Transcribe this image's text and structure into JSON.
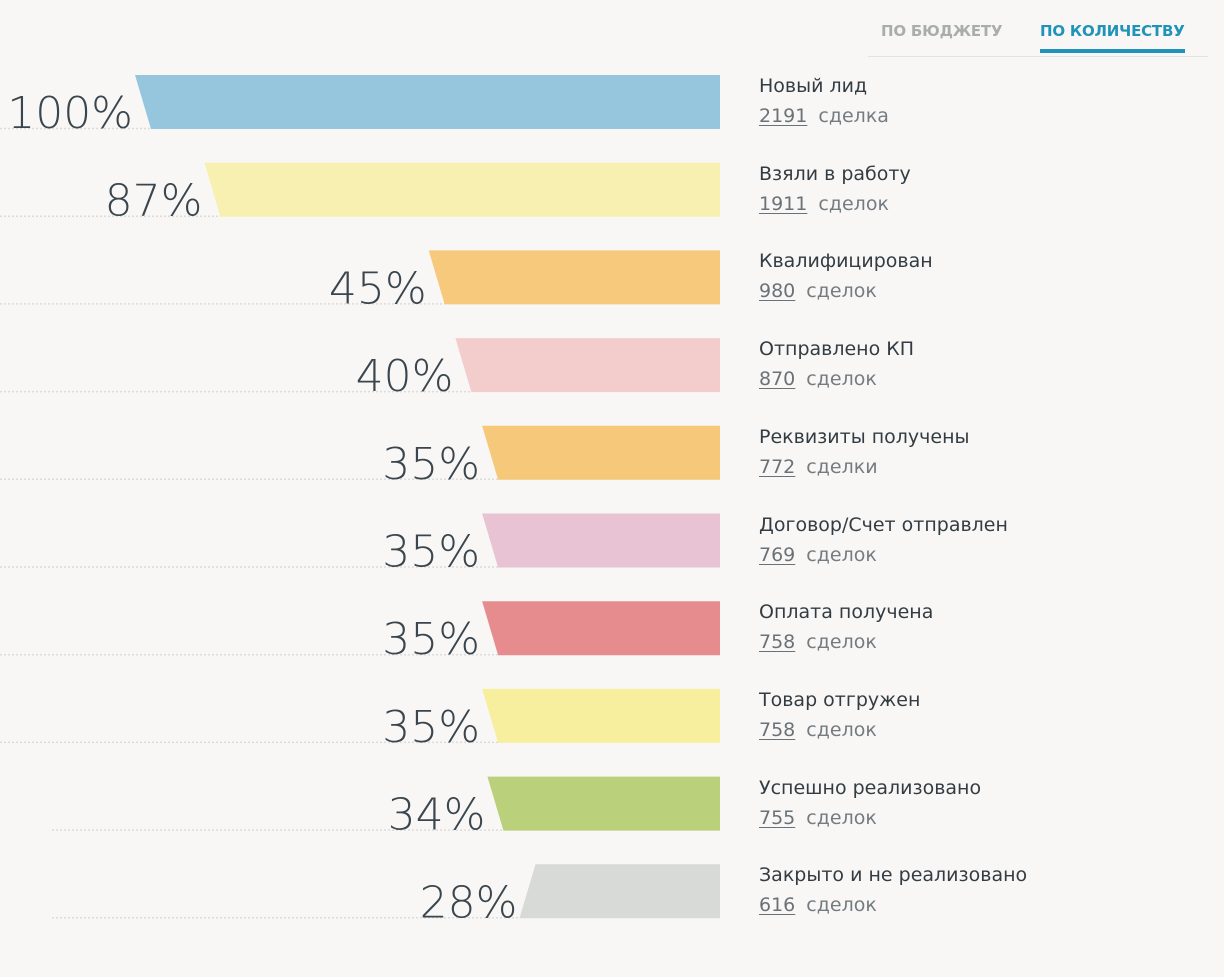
{
  "tabs": {
    "by_budget": "ПО БЮДЖЕТУ",
    "by_count": "ПО КОЛИЧЕСТВУ",
    "active": "by_count"
  },
  "colors": {
    "accent": "#1f93b8",
    "inactive_tab": "#a9aeab",
    "background": "#f8f7f5"
  },
  "chart_data": {
    "type": "bar",
    "subtype": "funnel",
    "title": "",
    "xlabel": "",
    "ylabel": "",
    "categories": [
      "Новый лид",
      "Взяли в работу",
      "Квалифицирован",
      "Отправлено КП",
      "Реквизиты получены",
      "Договор/Счет отправлен",
      "Оплата получена",
      "Товар отгружен",
      "Успешно реализовано",
      "Закрыто и не реализовано"
    ],
    "series": [
      {
        "name": "percent",
        "values": [
          100,
          87,
          45,
          40,
          35,
          35,
          35,
          35,
          34,
          28
        ]
      },
      {
        "name": "deals",
        "values": [
          2191,
          1911,
          980,
          870,
          772,
          769,
          758,
          758,
          755,
          616
        ]
      }
    ],
    "xlim": [
      0,
      100
    ],
    "grid": false,
    "legend": "none",
    "stages": [
      {
        "name": "Новый лид",
        "percent": 100,
        "percent_label": "100%",
        "count": "2191",
        "unit": "сделка",
        "color": "#95c6de"
      },
      {
        "name": "Взяли в работу",
        "percent": 87,
        "percent_label": "87%",
        "count": "1911",
        "unit": "сделок",
        "color": "#f8f0b0"
      },
      {
        "name": "Квалифицирован",
        "percent": 45,
        "percent_label": "45%",
        "count": "980",
        "unit": "сделок",
        "color": "#f6c97c"
      },
      {
        "name": "Отправлено КП",
        "percent": 40,
        "percent_label": "40%",
        "count": "870",
        "unit": "сделок",
        "color": "#f3cccc"
      },
      {
        "name": "Реквизиты получены",
        "percent": 35,
        "percent_label": "35%",
        "count": "772",
        "unit": "сделки",
        "color": "#f6c97a"
      },
      {
        "name": "Договор/Счет отправлен",
        "percent": 35,
        "percent_label": "35%",
        "count": "769",
        "unit": "сделок",
        "color": "#e7c3d3"
      },
      {
        "name": "Оплата получена",
        "percent": 35,
        "percent_label": "35%",
        "count": "758",
        "unit": "сделок",
        "color": "#e68c8f"
      },
      {
        "name": "Товар отгружен",
        "percent": 35,
        "percent_label": "35%",
        "count": "758",
        "unit": "сделок",
        "color": "#f8ef9e"
      },
      {
        "name": "Успешно реализовано",
        "percent": 34,
        "percent_label": "34%",
        "count": "755",
        "unit": "сделок",
        "color": "#bad07a"
      },
      {
        "name": "Закрыто и не реализовано",
        "percent": 28,
        "percent_label": "28%",
        "count": "616",
        "unit": "сделок",
        "color": "#d8dad7",
        "reverse_slant": true
      }
    ]
  }
}
